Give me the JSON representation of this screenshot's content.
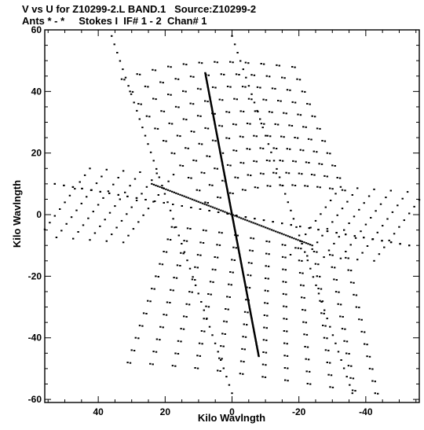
{
  "header": {
    "line1": "V vs U for Z10299-2.L BAND.1   Source:Z10299-2",
    "line2": "Ants * - *     Stokes I  IF# 1 - 2  Chan# 1"
  },
  "chart_data": {
    "type": "scatter",
    "title": "V vs U for Z10299-2.L BAND.1   Source:Z10299-2",
    "subtitle": "Ants * - *     Stokes I  IF# 1 - 2  Chan# 1",
    "xlabel": "Kilo Wavlngth",
    "ylabel": "Kilo Wavlngth",
    "xlim": [
      56,
      -56
    ],
    "ylim": [
      -61,
      60
    ],
    "x_ticks": [
      40,
      20,
      0,
      -20,
      -40
    ],
    "x_tick_labels": [
      "40",
      "20",
      "0",
      "-20",
      "-40"
    ],
    "y_ticks": [
      60,
      40,
      20,
      0,
      -20,
      -40,
      -60
    ],
    "y_tick_labels": [
      "60",
      "40",
      "20",
      "0",
      "-20",
      "-40",
      "-60"
    ],
    "grid": false,
    "marker_color": "#000000",
    "series": [
      {
        "tracks": [
          {
            "from": [
              36,
              58
            ],
            "to": [
              0,
              -58
            ],
            "points": 44
          },
          {
            "from": [
              -36,
              -58
            ],
            "to": [
              0,
              58
            ],
            "points": 44
          },
          {
            "from": [
              8,
              46
            ],
            "to": [
              -8,
              -46
            ],
            "points": 300
          },
          {
            "from": [
              53,
              10
            ],
            "to": [
              -53,
              -10
            ],
            "points": 40
          },
          {
            "from": [
              -53,
              -10
            ],
            "to": [
              53,
              10
            ],
            "points": 40
          },
          {
            "from": [
              24,
              10
            ],
            "to": [
              -24,
              -10
            ],
            "points": 80
          }
        ],
        "bands_v_upper": [
          44,
          40,
          36,
          32,
          28,
          24,
          20,
          16,
          12,
          8,
          4
        ],
        "bands_v_lower": [
          -4,
          -8,
          -12,
          -16,
          -20,
          -24,
          -28,
          -32,
          -36,
          -40,
          -44,
          -48
        ],
        "fan_u": [
          50,
          45,
          40,
          35,
          30,
          25,
          -25,
          -30,
          -35,
          -40,
          -45,
          -50
        ]
      }
    ]
  }
}
